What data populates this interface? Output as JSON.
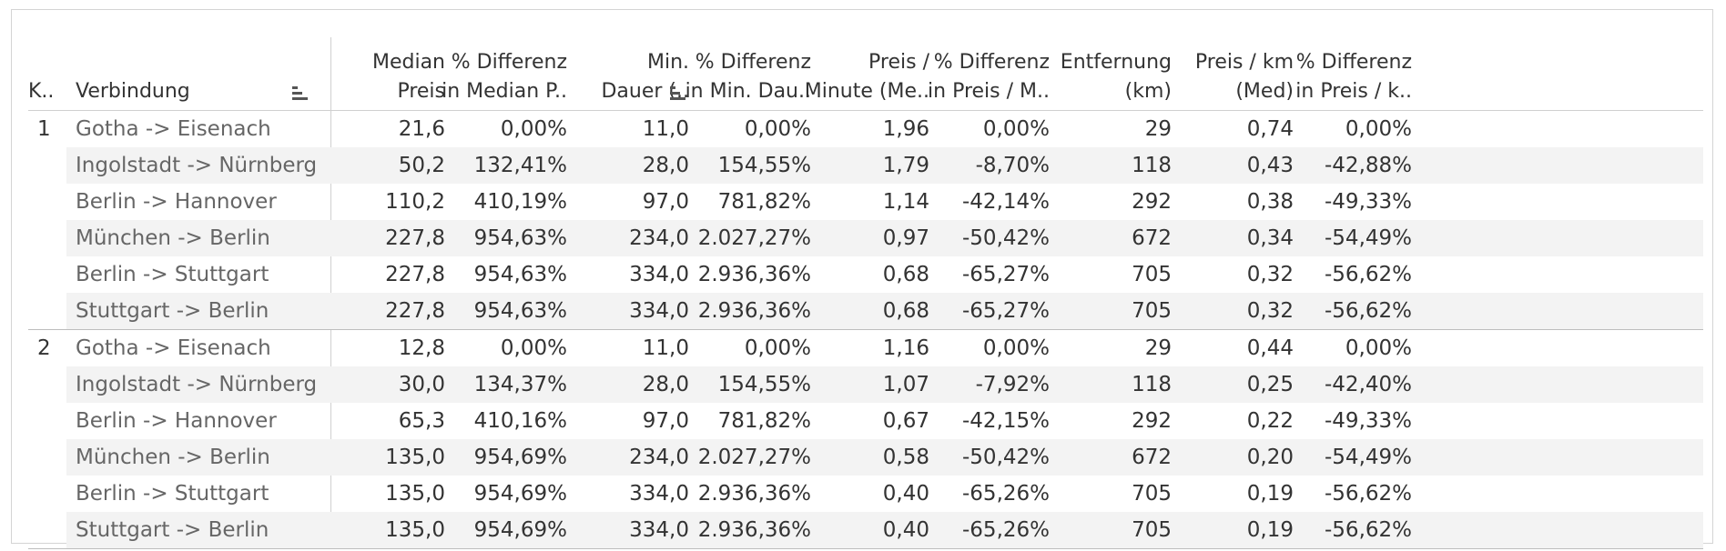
{
  "columns": [
    {
      "key": "k",
      "lines": [
        "K.."
      ]
    },
    {
      "key": "conn",
      "lines": [
        "Verbindung"
      ]
    },
    {
      "key": "median",
      "lines": [
        "Median",
        "Preis"
      ]
    },
    {
      "key": "pct_median",
      "lines": [
        "% Differenz",
        "in Median P.."
      ]
    },
    {
      "key": "min_dauer",
      "lines": [
        "Min.",
        "Dauer (.."
      ]
    },
    {
      "key": "pct_dauer",
      "lines": [
        "% Differenz",
        "in Min. Dau.."
      ]
    },
    {
      "key": "preis_min",
      "lines": [
        "Preis /",
        "Minute (Me.."
      ]
    },
    {
      "key": "pct_preis_min",
      "lines": [
        "% Differenz",
        "in Preis / M.."
      ]
    },
    {
      "key": "entf",
      "lines": [
        "Entfernung",
        "(km)"
      ]
    },
    {
      "key": "preis_km",
      "lines": [
        "Preis / km",
        "(Med)"
      ]
    },
    {
      "key": "pct_preis_km",
      "lines": [
        "% Differenz",
        "in Preis / k.."
      ]
    }
  ],
  "groups": [
    {
      "label": "1",
      "rows": [
        [
          "Gotha -> Eisenach",
          "21,6",
          "0,00%",
          "11,0",
          "0,00%",
          "1,96",
          "0,00%",
          "29",
          "0,74",
          "0,00%"
        ],
        [
          "Ingolstadt -> Nürnberg",
          "50,2",
          "132,41%",
          "28,0",
          "154,55%",
          "1,79",
          "-8,70%",
          "118",
          "0,43",
          "-42,88%"
        ],
        [
          "Berlin -> Hannover",
          "110,2",
          "410,19%",
          "97,0",
          "781,82%",
          "1,14",
          "-42,14%",
          "292",
          "0,38",
          "-49,33%"
        ],
        [
          "München -> Berlin",
          "227,8",
          "954,63%",
          "234,0",
          "2.027,27%",
          "0,97",
          "-50,42%",
          "672",
          "0,34",
          "-54,49%"
        ],
        [
          "Berlin -> Stuttgart",
          "227,8",
          "954,63%",
          "334,0",
          "2.936,36%",
          "0,68",
          "-65,27%",
          "705",
          "0,32",
          "-56,62%"
        ],
        [
          "Stuttgart -> Berlin",
          "227,8",
          "954,63%",
          "334,0",
          "2.936,36%",
          "0,68",
          "-65,27%",
          "705",
          "0,32",
          "-56,62%"
        ]
      ]
    },
    {
      "label": "2",
      "rows": [
        [
          "Gotha -> Eisenach",
          "12,8",
          "0,00%",
          "11,0",
          "0,00%",
          "1,16",
          "0,00%",
          "29",
          "0,44",
          "0,00%"
        ],
        [
          "Ingolstadt -> Nürnberg",
          "30,0",
          "134,37%",
          "28,0",
          "154,55%",
          "1,07",
          "-7,92%",
          "118",
          "0,25",
          "-42,40%"
        ],
        [
          "Berlin -> Hannover",
          "65,3",
          "410,16%",
          "97,0",
          "781,82%",
          "0,67",
          "-42,15%",
          "292",
          "0,22",
          "-49,33%"
        ],
        [
          "München -> Berlin",
          "135,0",
          "954,69%",
          "234,0",
          "2.027,27%",
          "0,58",
          "-50,42%",
          "672",
          "0,20",
          "-54,49%"
        ],
        [
          "Berlin -> Stuttgart",
          "135,0",
          "954,69%",
          "334,0",
          "2.936,36%",
          "0,40",
          "-65,26%",
          "705",
          "0,19",
          "-56,62%"
        ],
        [
          "Stuttgart -> Berlin",
          "135,0",
          "954,69%",
          "334,0",
          "2.936,36%",
          "0,40",
          "-65,26%",
          "705",
          "0,19",
          "-56,62%"
        ]
      ]
    }
  ]
}
